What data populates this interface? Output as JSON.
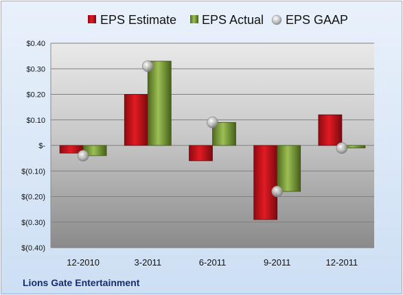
{
  "company_name": "Lions Gate Entertainment",
  "colors": {
    "estimate": "#c8102e",
    "actual": "#7a9a2e",
    "gaap": "#b0b0b0"
  },
  "chart_data": {
    "type": "bar",
    "categories": [
      "12-2010",
      "3-2011",
      "6-2011",
      "9-2011",
      "12-2011"
    ],
    "series": [
      {
        "name": "EPS Estimate",
        "values": [
          -0.03,
          0.2,
          -0.06,
          -0.29,
          0.12
        ]
      },
      {
        "name": "EPS Actual",
        "values": [
          -0.04,
          0.33,
          0.09,
          -0.18,
          -0.01
        ]
      },
      {
        "name": "EPS GAAP",
        "type": "scatter",
        "values": [
          -0.04,
          0.31,
          0.09,
          -0.18,
          -0.01
        ]
      }
    ],
    "ylim": [
      -0.4,
      0.4
    ],
    "yticks": [
      0.4,
      0.3,
      0.2,
      0.1,
      0,
      -0.1,
      -0.2,
      -0.3,
      -0.4
    ],
    "ytick_labels": [
      "$0.40",
      "$0.30",
      "$0.20",
      "$0.10",
      "$-",
      "$(0.10)",
      "$(0.20)",
      "$(0.30)",
      "$(0.40)"
    ],
    "legend_position": "top",
    "grid": true
  }
}
